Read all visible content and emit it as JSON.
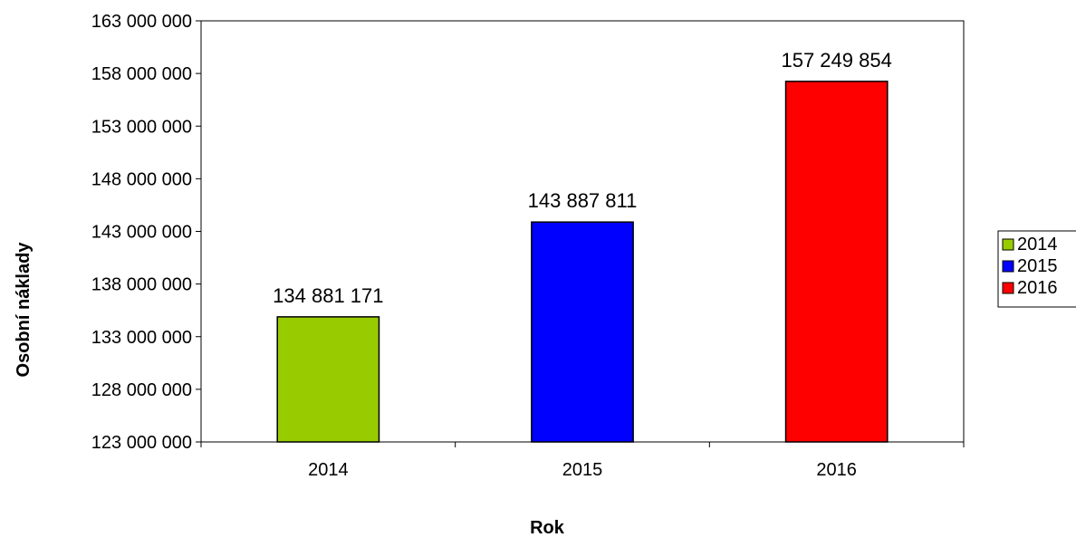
{
  "chart_data": {
    "type": "bar",
    "title": "",
    "xlabel": "Rok",
    "ylabel": "Osobní náklady",
    "ylim": [
      123000000,
      163000000
    ],
    "y_ticks": [
      "163 000 000",
      "158 000 000",
      "153 000 000",
      "148 000 000",
      "143 000 000",
      "138 000 000",
      "133 000 000",
      "128 000 000",
      "123 000 000"
    ],
    "categories": [
      "2014",
      "2015",
      "2016"
    ],
    "values": [
      134881171,
      143887811,
      157249854
    ],
    "data_labels": [
      "134 881 171",
      "143 887 811",
      "157 249 854"
    ],
    "colors": [
      "#99CC00",
      "#0000FF",
      "#FF0000"
    ],
    "grid": false,
    "legend": {
      "placement": "right",
      "entries": [
        "2014",
        "2015",
        "2016"
      ]
    }
  }
}
